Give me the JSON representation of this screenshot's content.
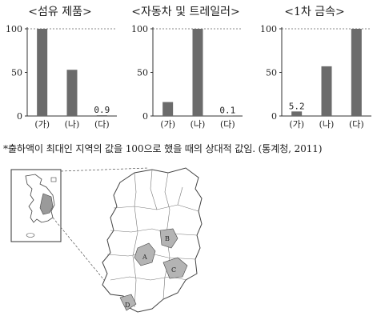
{
  "chart_data": [
    {
      "type": "bar",
      "title": "<섬유 제품>",
      "categories": [
        "(가)",
        "(나)",
        "(다)"
      ],
      "values": [
        100,
        53,
        0.9
      ],
      "data_labels": [
        "",
        "",
        "0.9"
      ],
      "ylim": [
        0,
        100
      ],
      "yticks": [
        "100",
        "50",
        "0"
      ]
    },
    {
      "type": "bar",
      "title": "<자동차 및 트레일러>",
      "categories": [
        "(가)",
        "(나)",
        "(다)"
      ],
      "values": [
        16,
        100,
        0.1
      ],
      "data_labels": [
        "",
        "",
        "0.1"
      ],
      "ylim": [
        0,
        100
      ],
      "yticks": [
        "100",
        "50",
        "0"
      ]
    },
    {
      "type": "bar",
      "title": "<1차 금속>",
      "categories": [
        "(가)",
        "(나)",
        "(다)"
      ],
      "values": [
        5.2,
        57,
        100
      ],
      "data_labels": [
        "5.2",
        "",
        ""
      ],
      "ylim": [
        0,
        100
      ],
      "yticks": [
        "100",
        "50",
        "0"
      ]
    }
  ],
  "note": "*출하액이 최대인 지역의 값을 100으로 했을 때의 상대적 값임. (통계청, 2011)",
  "map": {
    "region_labels": [
      "A",
      "B",
      "C",
      "D"
    ]
  },
  "colors": {
    "bar": "#6b6b6b",
    "axis": "#333333",
    "grid": "#888888",
    "shade": "#b4b4b4"
  }
}
